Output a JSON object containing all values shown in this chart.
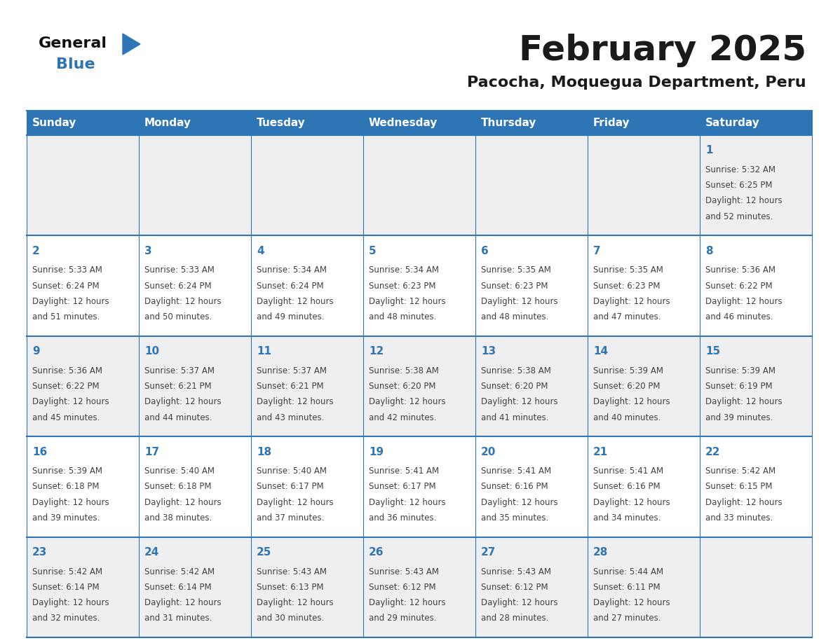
{
  "title": "February 2025",
  "subtitle": "Pacocha, Moquegua Department, Peru",
  "days_of_week": [
    "Sunday",
    "Monday",
    "Tuesday",
    "Wednesday",
    "Thursday",
    "Friday",
    "Saturday"
  ],
  "header_bg": "#2E75B6",
  "header_text": "#FFFFFF",
  "row_bg_odd": "#EFEFEF",
  "row_bg_even": "#FFFFFF",
  "border_color": "#2E75B6",
  "day_text_color": "#2E75B6",
  "info_text_color": "#404040",
  "title_color": "#1a1a1a",
  "subtitle_color": "#1a1a1a",
  "logo_general_color": "#1a1a1a",
  "logo_blue_color": "#2E75B6",
  "calendar_data": [
    [
      null,
      null,
      null,
      null,
      null,
      null,
      1
    ],
    [
      2,
      3,
      4,
      5,
      6,
      7,
      8
    ],
    [
      9,
      10,
      11,
      12,
      13,
      14,
      15
    ],
    [
      16,
      17,
      18,
      19,
      20,
      21,
      22
    ],
    [
      23,
      24,
      25,
      26,
      27,
      28,
      null
    ]
  ],
  "sun_info": {
    "1": {
      "rise": "5:32 AM",
      "set": "6:25 PM",
      "hours": "12 hours",
      "mins": "52 minutes"
    },
    "2": {
      "rise": "5:33 AM",
      "set": "6:24 PM",
      "hours": "12 hours",
      "mins": "51 minutes"
    },
    "3": {
      "rise": "5:33 AM",
      "set": "6:24 PM",
      "hours": "12 hours",
      "mins": "50 minutes"
    },
    "4": {
      "rise": "5:34 AM",
      "set": "6:24 PM",
      "hours": "12 hours",
      "mins": "49 minutes"
    },
    "5": {
      "rise": "5:34 AM",
      "set": "6:23 PM",
      "hours": "12 hours",
      "mins": "48 minutes"
    },
    "6": {
      "rise": "5:35 AM",
      "set": "6:23 PM",
      "hours": "12 hours",
      "mins": "48 minutes"
    },
    "7": {
      "rise": "5:35 AM",
      "set": "6:23 PM",
      "hours": "12 hours",
      "mins": "47 minutes"
    },
    "8": {
      "rise": "5:36 AM",
      "set": "6:22 PM",
      "hours": "12 hours",
      "mins": "46 minutes"
    },
    "9": {
      "rise": "5:36 AM",
      "set": "6:22 PM",
      "hours": "12 hours",
      "mins": "45 minutes"
    },
    "10": {
      "rise": "5:37 AM",
      "set": "6:21 PM",
      "hours": "12 hours",
      "mins": "44 minutes"
    },
    "11": {
      "rise": "5:37 AM",
      "set": "6:21 PM",
      "hours": "12 hours",
      "mins": "43 minutes"
    },
    "12": {
      "rise": "5:38 AM",
      "set": "6:20 PM",
      "hours": "12 hours",
      "mins": "42 minutes"
    },
    "13": {
      "rise": "5:38 AM",
      "set": "6:20 PM",
      "hours": "12 hours",
      "mins": "41 minutes"
    },
    "14": {
      "rise": "5:39 AM",
      "set": "6:20 PM",
      "hours": "12 hours",
      "mins": "40 minutes"
    },
    "15": {
      "rise": "5:39 AM",
      "set": "6:19 PM",
      "hours": "12 hours",
      "mins": "39 minutes"
    },
    "16": {
      "rise": "5:39 AM",
      "set": "6:18 PM",
      "hours": "12 hours",
      "mins": "39 minutes"
    },
    "17": {
      "rise": "5:40 AM",
      "set": "6:18 PM",
      "hours": "12 hours",
      "mins": "38 minutes"
    },
    "18": {
      "rise": "5:40 AM",
      "set": "6:17 PM",
      "hours": "12 hours",
      "mins": "37 minutes"
    },
    "19": {
      "rise": "5:41 AM",
      "set": "6:17 PM",
      "hours": "12 hours",
      "mins": "36 minutes"
    },
    "20": {
      "rise": "5:41 AM",
      "set": "6:16 PM",
      "hours": "12 hours",
      "mins": "35 minutes"
    },
    "21": {
      "rise": "5:41 AM",
      "set": "6:16 PM",
      "hours": "12 hours",
      "mins": "34 minutes"
    },
    "22": {
      "rise": "5:42 AM",
      "set": "6:15 PM",
      "hours": "12 hours",
      "mins": "33 minutes"
    },
    "23": {
      "rise": "5:42 AM",
      "set": "6:14 PM",
      "hours": "12 hours",
      "mins": "32 minutes"
    },
    "24": {
      "rise": "5:42 AM",
      "set": "6:14 PM",
      "hours": "12 hours",
      "mins": "31 minutes"
    },
    "25": {
      "rise": "5:43 AM",
      "set": "6:13 PM",
      "hours": "12 hours",
      "mins": "30 minutes"
    },
    "26": {
      "rise": "5:43 AM",
      "set": "6:12 PM",
      "hours": "12 hours",
      "mins": "29 minutes"
    },
    "27": {
      "rise": "5:43 AM",
      "set": "6:12 PM",
      "hours": "12 hours",
      "mins": "28 minutes"
    },
    "28": {
      "rise": "5:44 AM",
      "set": "6:11 PM",
      "hours": "12 hours",
      "mins": "27 minutes"
    }
  }
}
